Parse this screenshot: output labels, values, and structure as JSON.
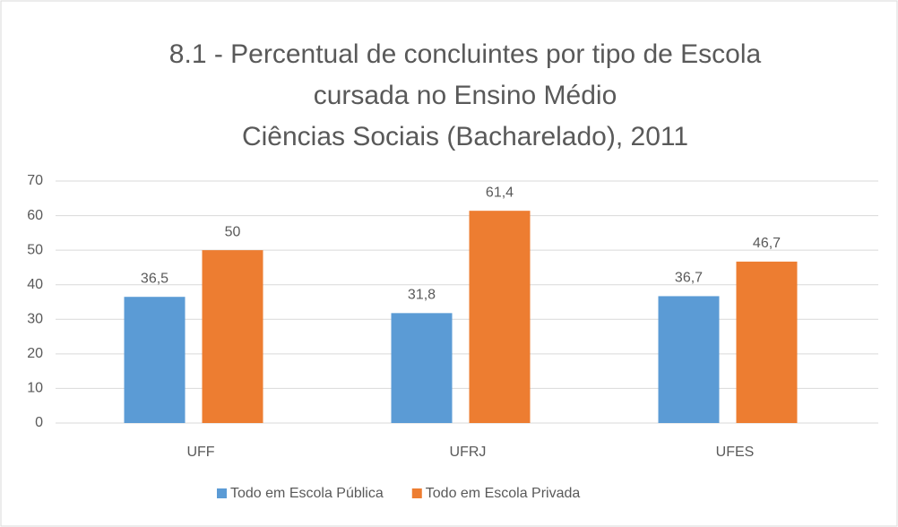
{
  "chart_data": {
    "type": "bar",
    "title": [
      "8.1 - Percentual de concluintes por tipo de Escola",
      "cursada no Ensino Médio",
      "Ciências Sociais (Bacharelado), 2011"
    ],
    "categories": [
      "UFF",
      "UFRJ",
      "UFES"
    ],
    "series": [
      {
        "name": "Todo em Escola Pública",
        "color": "#5b9bd5",
        "values": [
          36.5,
          31.8,
          36.7
        ],
        "value_labels": [
          "36,5",
          "31,8",
          "36,7"
        ]
      },
      {
        "name": "Todo em Escola Privada",
        "color": "#ed7d31",
        "values": [
          50,
          61.4,
          46.7
        ],
        "value_labels": [
          "50",
          "61,4",
          "46,7"
        ]
      }
    ],
    "ylim": [
      0,
      70
    ],
    "yticks": [
      0,
      10,
      20,
      30,
      40,
      50,
      60,
      70
    ],
    "grid": true,
    "legend": "bottom"
  }
}
